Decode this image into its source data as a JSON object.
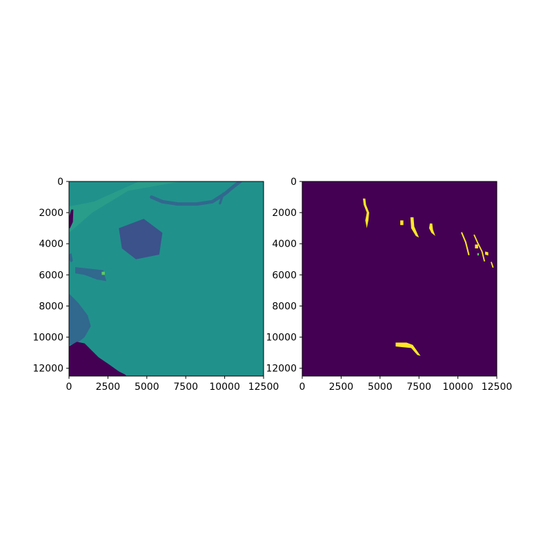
{
  "figure": {
    "background": "#ffffff"
  },
  "chart_data": [
    {
      "type": "heatmap",
      "title": "",
      "xlabel": "",
      "ylabel": "",
      "xlim": [
        0,
        12500
      ],
      "ylim": [
        12500,
        0
      ],
      "y_inverted": true,
      "colormap": "viridis",
      "xticks": [
        0,
        2500,
        5000,
        7500,
        10000,
        12500
      ],
      "xtick_labels": [
        "0",
        "2500",
        "5000",
        "7500",
        "10000",
        "12500"
      ],
      "yticks": [
        0,
        2000,
        4000,
        6000,
        8000,
        10000,
        12000
      ],
      "ytick_labels": [
        "0",
        "2000",
        "4000",
        "6000",
        "8000",
        "10000",
        "12000"
      ],
      "dominant_color": "#21918c",
      "colors": {
        "base": "#21918c",
        "light": "#2a9d8a",
        "dark": "#31688e",
        "darkest": "#440154",
        "mid_dark": "#3b528b",
        "bright": "#5ec962"
      },
      "features": [
        {
          "kind": "band",
          "color": "light",
          "points": [
            [
              0,
              2600
            ],
            [
              0,
              1600
            ],
            [
              1600,
              1300
            ],
            [
              4500,
              0
            ],
            [
              7200,
              0
            ],
            [
              3800,
              600
            ],
            [
              1500,
              2000
            ],
            [
              0,
              3300
            ]
          ]
        },
        {
          "kind": "line",
          "color": "dark",
          "width": 220,
          "points": [
            [
              5300,
              1000
            ],
            [
              6000,
              1300
            ],
            [
              7000,
              1450
            ],
            [
              8200,
              1450
            ],
            [
              9200,
              1300
            ],
            [
              10000,
              800
            ],
            [
              10600,
              300
            ],
            [
              11000,
              0
            ]
          ]
        },
        {
          "kind": "line",
          "color": "dark",
          "width": 150,
          "points": [
            [
              9700,
              1400
            ],
            [
              9900,
              800
            ],
            [
              10200,
              700
            ]
          ]
        },
        {
          "kind": "blob",
          "color": "darkest",
          "points": [
            [
              0,
              2300
            ],
            [
              150,
              1800
            ],
            [
              280,
              1800
            ],
            [
              250,
              2600
            ],
            [
              60,
              3000
            ],
            [
              0,
              3000
            ]
          ]
        },
        {
          "kind": "blob",
          "color": "dark",
          "points": [
            [
              0,
              4700
            ],
            [
              150,
              4600
            ],
            [
              250,
              5100
            ],
            [
              120,
              5200
            ],
            [
              0,
              5000
            ]
          ]
        },
        {
          "kind": "blob",
          "color": "dark",
          "points": [
            [
              400,
              5500
            ],
            [
              1300,
              5600
            ],
            [
              2200,
              5700
            ],
            [
              2400,
              6400
            ],
            [
              1800,
              6300
            ],
            [
              1000,
              6000
            ],
            [
              400,
              5900
            ]
          ]
        },
        {
          "kind": "blob",
          "color": "bright",
          "points": [
            [
              2100,
              5800
            ],
            [
              2300,
              5800
            ],
            [
              2300,
              6000
            ],
            [
              2100,
              6000
            ]
          ]
        },
        {
          "kind": "blob",
          "color": "dark",
          "points": [
            [
              0,
              7200
            ],
            [
              600,
              7800
            ],
            [
              1200,
              8600
            ],
            [
              1400,
              9300
            ],
            [
              1000,
              10000
            ],
            [
              500,
              10400
            ],
            [
              0,
              10500
            ]
          ]
        },
        {
          "kind": "blob",
          "color": "darkest",
          "points": [
            [
              0,
              10600
            ],
            [
              500,
              10300
            ],
            [
              1000,
              10400
            ],
            [
              1400,
              10800
            ],
            [
              1900,
              11300
            ],
            [
              2500,
              11700
            ],
            [
              3200,
              12200
            ],
            [
              3600,
              12400
            ],
            [
              3700,
              12500
            ],
            [
              0,
              12500
            ]
          ]
        },
        {
          "kind": "blob",
          "color": "mid_dark",
          "points": [
            [
              3200,
              3000
            ],
            [
              4800,
              2400
            ],
            [
              6000,
              3300
            ],
            [
              5800,
              4700
            ],
            [
              4300,
              5000
            ],
            [
              3400,
              4300
            ]
          ]
        }
      ]
    },
    {
      "type": "heatmap",
      "title": "",
      "xlabel": "",
      "ylabel": "",
      "xlim": [
        0,
        12500
      ],
      "ylim": [
        12500,
        0
      ],
      "y_inverted": true,
      "colormap": "viridis",
      "xticks": [
        0,
        2500,
        5000,
        7500,
        10000,
        12500
      ],
      "xtick_labels": [
        "0",
        "2500",
        "5000",
        "7500",
        "10000",
        "12500"
      ],
      "yticks": [
        0,
        2000,
        4000,
        6000,
        8000,
        10000,
        12000
      ],
      "ytick_labels": [
        "0",
        "2000",
        "4000",
        "6000",
        "8000",
        "10000",
        "12000"
      ],
      "mask_values": [
        0,
        1
      ],
      "colors": {
        "background": "#440154",
        "mask": "#fde725",
        "edge": "#5ec962"
      },
      "features": [
        {
          "kind": "blob",
          "color": "mask",
          "points": [
            [
              3900,
              1100
            ],
            [
              4050,
              1100
            ],
            [
              4100,
              1500
            ],
            [
              4300,
              2000
            ],
            [
              4250,
              2500
            ],
            [
              4150,
              3000
            ],
            [
              4050,
              2500
            ],
            [
              4150,
              2000
            ],
            [
              3950,
              1500
            ]
          ]
        },
        {
          "kind": "blob",
          "color": "mask",
          "points": [
            [
              6300,
              2500
            ],
            [
              6500,
              2500
            ],
            [
              6500,
              2800
            ],
            [
              6300,
              2800
            ]
          ]
        },
        {
          "kind": "blob",
          "color": "mask",
          "points": [
            [
              6950,
              2300
            ],
            [
              7150,
              2300
            ],
            [
              7200,
              2900
            ],
            [
              7500,
              3600
            ],
            [
              7300,
              3500
            ],
            [
              7000,
              3000
            ]
          ]
        },
        {
          "kind": "blob",
          "color": "mask",
          "points": [
            [
              8200,
              2700
            ],
            [
              8350,
              2700
            ],
            [
              8400,
              3100
            ],
            [
              8550,
              3500
            ],
            [
              8300,
              3300
            ],
            [
              8150,
              3000
            ]
          ]
        },
        {
          "kind": "line",
          "color": "mask",
          "width": 90,
          "points": [
            [
              10250,
              3300
            ],
            [
              10500,
              3900
            ],
            [
              10700,
              4700
            ]
          ]
        },
        {
          "kind": "line",
          "color": "mask",
          "width": 80,
          "points": [
            [
              11050,
              3450
            ],
            [
              11300,
              4000
            ],
            [
              11550,
              4500
            ],
            [
              11700,
              5100
            ]
          ]
        },
        {
          "kind": "blob",
          "color": "mask",
          "points": [
            [
              11100,
              4050
            ],
            [
              11300,
              4050
            ],
            [
              11300,
              4300
            ],
            [
              11100,
              4300
            ]
          ]
        },
        {
          "kind": "blob",
          "color": "mask",
          "points": [
            [
              11750,
              4500
            ],
            [
              11950,
              4550
            ],
            [
              11950,
              4750
            ],
            [
              11750,
              4700
            ]
          ]
        },
        {
          "kind": "line",
          "color": "mask",
          "width": 80,
          "points": [
            [
              12150,
              5200
            ],
            [
              12250,
              5500
            ]
          ]
        },
        {
          "kind": "blob",
          "color": "mask",
          "points": [
            [
              6000,
              10350
            ],
            [
              6700,
              10350
            ],
            [
              7100,
              10500
            ],
            [
              7600,
              11200
            ],
            [
              7400,
              11150
            ],
            [
              7000,
              10700
            ],
            [
              6000,
              10600
            ]
          ]
        },
        {
          "kind": "blob",
          "color": "edge",
          "points": [
            [
              11250,
              4600
            ],
            [
              11350,
              4600
            ],
            [
              11350,
              4750
            ],
            [
              11250,
              4750
            ]
          ]
        }
      ]
    }
  ]
}
